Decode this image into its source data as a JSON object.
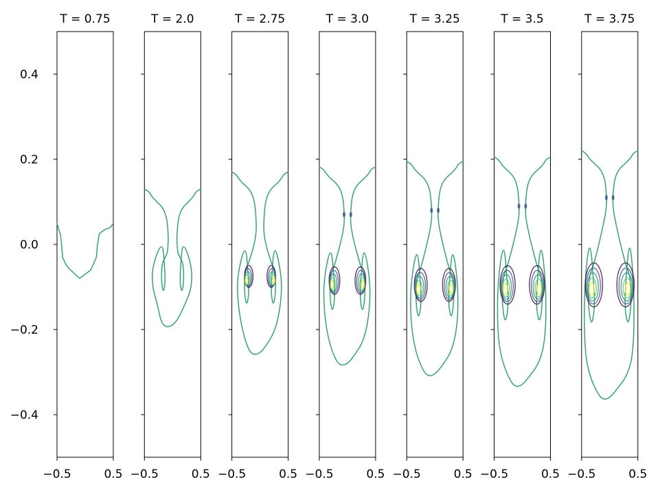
{
  "chart_data": {
    "type": "contour",
    "shared_y_axis": true,
    "ylim": [
      -0.5,
      0.5
    ],
    "yticks": [
      0.4,
      0.2,
      0.0,
      -0.2,
      -0.4
    ],
    "ytick_labels": [
      "0.4",
      "0.2",
      "0.0",
      "−0.2",
      "−0.4"
    ],
    "xlim": [
      -0.5,
      0.5
    ],
    "xtick_labels": [
      "−0.5",
      "0.5"
    ],
    "colormap": [
      "#440154",
      "#3b528b",
      "#21918c",
      "#5ec962",
      "#fde725"
    ],
    "panels": [
      {
        "title": "T = 0.75",
        "stage": 0,
        "interface": [
          [
            -0.5,
            0.05
          ],
          [
            -0.47,
            0.035
          ],
          [
            -0.44,
            0.025
          ],
          [
            -0.42,
            0.0
          ],
          [
            -0.4,
            -0.03
          ],
          [
            -0.35,
            -0.045
          ],
          [
            -0.3,
            -0.055
          ],
          [
            -0.22,
            -0.065
          ],
          [
            -0.1,
            -0.08
          ],
          [
            0.0,
            -0.07
          ],
          [
            0.1,
            -0.06
          ],
          [
            0.15,
            -0.045
          ],
          [
            0.2,
            -0.03
          ],
          [
            0.22,
            0.0
          ],
          [
            0.25,
            0.025
          ],
          [
            0.35,
            0.035
          ],
          [
            0.45,
            0.04
          ],
          [
            0.5,
            0.05
          ]
        ]
      },
      {
        "title": "T = 2.0",
        "stage": 1,
        "top": 0.13,
        "neck": 0.07,
        "neck_y": 0.0,
        "bottom": -0.195,
        "cap_y": -0.1,
        "cap_x": 0.36,
        "curl_x": 0.15,
        "curl_y": -0.06,
        "curl_r": 0.05
      },
      {
        "title": "T = 2.75",
        "stage": 2,
        "top": 0.17,
        "neck": 0.06,
        "neck_y": 0.03,
        "bottom": -0.26,
        "cap_y": -0.13,
        "cap_x": 0.4,
        "curl_x": 0.22,
        "curl_y": -0.08,
        "curl_r": 0.06
      },
      {
        "title": "T = 3.0",
        "stage": 3,
        "top": 0.182,
        "neck": 0.05,
        "neck_y": 0.05,
        "bottom": -0.285,
        "cap_y": -0.15,
        "cap_x": 0.42,
        "curl_x": 0.25,
        "curl_y": -0.09,
        "curl_r": 0.065
      },
      {
        "title": "T = 3.25",
        "stage": 4,
        "top": 0.195,
        "neck": 0.05,
        "neck_y": 0.06,
        "bottom": -0.31,
        "cap_y": -0.18,
        "cap_x": 0.43,
        "curl_x": 0.27,
        "curl_y": -0.1,
        "curl_r": 0.07
      },
      {
        "title": "T = 3.5",
        "stage": 5,
        "top": 0.205,
        "neck": 0.05,
        "neck_y": 0.07,
        "bottom": -0.335,
        "cap_y": -0.21,
        "cap_x": 0.44,
        "curl_x": 0.28,
        "curl_y": -0.1,
        "curl_r": 0.08
      },
      {
        "title": "T = 3.75",
        "stage": 6,
        "top": 0.22,
        "neck": 0.05,
        "neck_y": 0.09,
        "bottom": -0.365,
        "cap_y": -0.24,
        "cap_x": 0.45,
        "curl_x": 0.3,
        "curl_y": -0.1,
        "curl_r": 0.085
      }
    ]
  }
}
